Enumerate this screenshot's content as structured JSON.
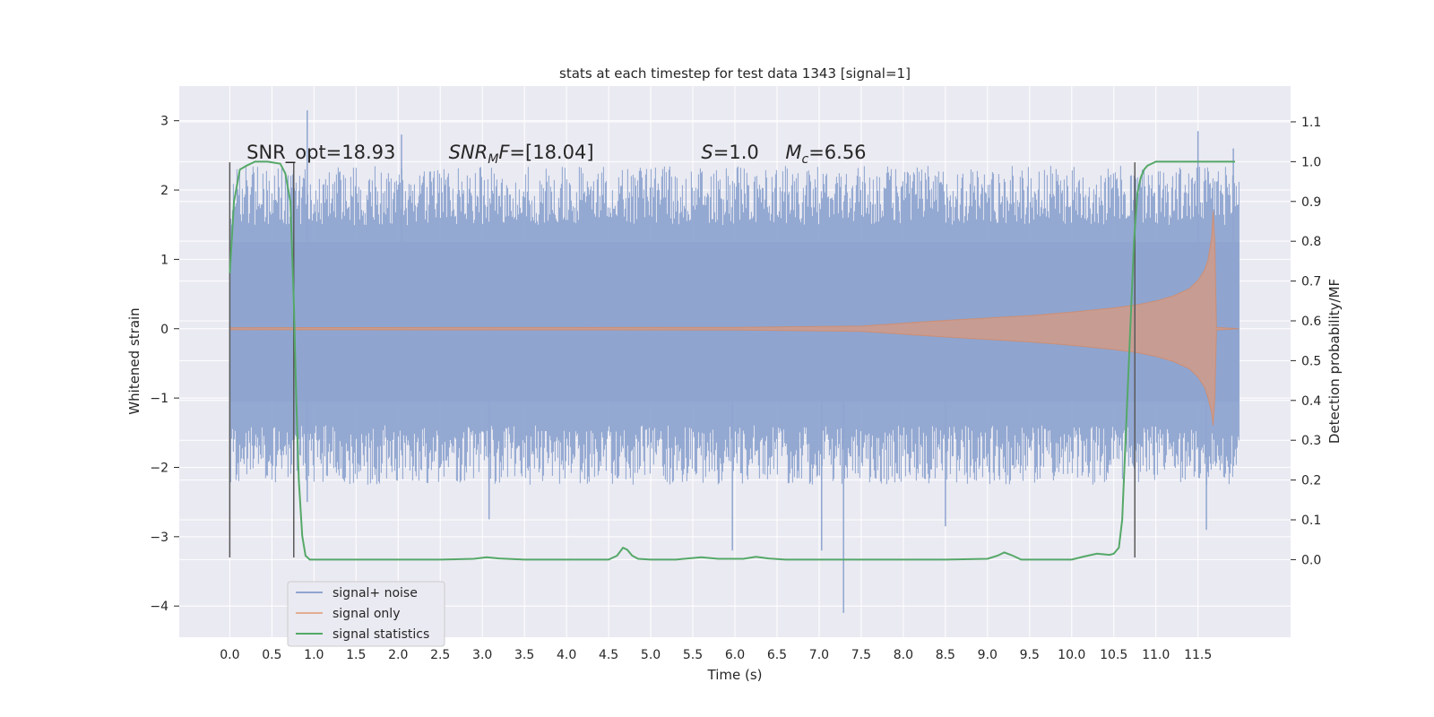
{
  "chart_data": {
    "type": "line",
    "title": "stats at each timestep for test data 1343 [signal=1]",
    "xlabel": "Time (s)",
    "ylabel": "Whitened strain",
    "y2label": "Detection probability/MF",
    "xlim": [
      -0.6,
      12.6
    ],
    "ylim": [
      -4.45,
      3.5
    ],
    "y2lim": [
      -0.195,
      1.19
    ],
    "xticks": [
      0.0,
      0.5,
      1.0,
      1.5,
      2.0,
      2.5,
      3.0,
      3.5,
      4.0,
      4.5,
      5.0,
      5.5,
      6.0,
      6.5,
      7.0,
      7.5,
      8.0,
      8.5,
      9.0,
      9.5,
      10.0,
      10.5,
      11.0,
      11.5
    ],
    "xtick_labels": [
      "0.0",
      "0.5",
      "1.0",
      "1.5",
      "2.0",
      "2.5",
      "3.0",
      "3.5",
      "4.0",
      "4.5",
      "5.0",
      "5.5",
      "6.0",
      "6.5",
      "7.0",
      "7.5",
      "8.0",
      "8.5",
      "9.0",
      "9.5",
      "10.0",
      "10.5",
      "11.0",
      "11.5"
    ],
    "yticks": [
      -4,
      -3,
      -2,
      -1,
      0,
      1,
      2,
      3
    ],
    "ytick_labels": [
      "−4",
      "−3",
      "−2",
      "−1",
      "0",
      "1",
      "2",
      "3"
    ],
    "y2ticks": [
      0.0,
      0.1,
      0.2,
      0.3,
      0.4,
      0.5,
      0.6,
      0.7,
      0.8,
      0.9,
      1.0,
      1.1
    ],
    "y2tick_labels": [
      "0.0",
      "0.1",
      "0.2",
      "0.3",
      "0.4",
      "0.5",
      "0.6",
      "0.7",
      "0.8",
      "0.9",
      "1.0",
      "1.1"
    ],
    "grid": true,
    "legend_position": "lower-left",
    "annotations": [
      {
        "text": "SNR_opt=18.93",
        "x": 0.2,
        "y": 2.45
      },
      {
        "text": "SNR_MF=[18.04]",
        "x": 2.6,
        "y": 2.45
      },
      {
        "text": "S=1.0",
        "x": 5.6,
        "y": 2.45
      },
      {
        "text": "M_c=6.56",
        "x": 6.6,
        "y": 2.45
      }
    ],
    "vertical_lines": [
      {
        "x": 0.0,
        "y_from": -3.3,
        "y_to": 2.4
      },
      {
        "x": 0.76,
        "y_from": -3.3,
        "y_to": 2.4
      },
      {
        "x": 10.75,
        "y_from": -3.3,
        "y_to": 2.4
      }
    ],
    "series": [
      {
        "name": "signal+ noise",
        "color": "#8fa5d0",
        "kind": "noise-band",
        "x_range": [
          0.0,
          11.99
        ],
        "typical_range": [
          -1.6,
          2.2
        ],
        "spikes": [
          {
            "x": 0.92,
            "y": 3.15
          },
          {
            "x": 0.92,
            "y": -2.5
          },
          {
            "x": 2.04,
            "y": 2.8
          },
          {
            "x": 3.08,
            "y": -2.75
          },
          {
            "x": 5.97,
            "y": -3.2
          },
          {
            "x": 7.03,
            "y": -3.2
          },
          {
            "x": 7.29,
            "y": -4.1
          },
          {
            "x": 8.5,
            "y": -2.85
          },
          {
            "x": 11.5,
            "y": 2.85
          },
          {
            "x": 11.6,
            "y": -2.9
          },
          {
            "x": 11.92,
            "y": 2.6
          }
        ]
      },
      {
        "name": "signal only",
        "color": "#dd8452",
        "kind": "chirp-envelope",
        "x": [
          0.0,
          6.0,
          7.5,
          8.5,
          9.5,
          10.0,
          10.5,
          10.8,
          11.0,
          11.2,
          11.4,
          11.5,
          11.58,
          11.62,
          11.66,
          11.68,
          11.7,
          11.72,
          11.99
        ],
        "upper": [
          0.015,
          0.02,
          0.04,
          0.12,
          0.19,
          0.24,
          0.3,
          0.35,
          0.4,
          0.47,
          0.58,
          0.7,
          0.85,
          1.0,
          1.3,
          1.7,
          1.25,
          0.02,
          0.0
        ],
        "lower": [
          -0.015,
          -0.02,
          -0.04,
          -0.12,
          -0.19,
          -0.24,
          -0.3,
          -0.35,
          -0.4,
          -0.47,
          -0.58,
          -0.7,
          -0.85,
          -1.0,
          -1.2,
          -1.4,
          -1.0,
          -0.02,
          0.0
        ]
      },
      {
        "name": "signal statistics",
        "color": "#55a868",
        "axis": "right",
        "x": [
          0.0,
          0.05,
          0.12,
          0.2,
          0.3,
          0.45,
          0.6,
          0.66,
          0.72,
          0.76,
          0.79,
          0.82,
          0.86,
          0.9,
          0.95,
          1.05,
          1.5,
          2.5,
          2.9,
          3.05,
          3.2,
          3.5,
          4.5,
          4.6,
          4.67,
          4.72,
          4.78,
          4.85,
          5.0,
          5.3,
          5.5,
          5.6,
          5.8,
          6.1,
          6.25,
          6.4,
          6.6,
          7.5,
          8.0,
          8.5,
          9.0,
          9.12,
          9.2,
          9.3,
          9.4,
          10.0,
          10.15,
          10.3,
          10.45,
          10.5,
          10.56,
          10.6,
          10.65,
          10.7,
          10.74,
          10.78,
          10.82,
          10.86,
          10.9,
          10.95,
          11.0,
          11.1,
          11.2,
          11.5,
          11.8,
          11.94
        ],
        "values": [
          0.72,
          0.9,
          0.98,
          0.99,
          1.0,
          1.0,
          0.995,
          0.97,
          0.9,
          0.65,
          0.4,
          0.2,
          0.06,
          0.01,
          0.0,
          0.0,
          0.0,
          0.0,
          0.002,
          0.006,
          0.003,
          0.0,
          0.0,
          0.01,
          0.03,
          0.025,
          0.01,
          0.002,
          0.0,
          0.0,
          0.004,
          0.006,
          0.002,
          0.002,
          0.007,
          0.003,
          0.0,
          0.0,
          0.0,
          0.0,
          0.002,
          0.01,
          0.018,
          0.01,
          0.0,
          0.0,
          0.008,
          0.015,
          0.012,
          0.015,
          0.03,
          0.1,
          0.35,
          0.6,
          0.8,
          0.92,
          0.96,
          0.98,
          0.99,
          0.995,
          1.0,
          1.0,
          1.0,
          1.0,
          1.0,
          1.0
        ]
      }
    ]
  }
}
